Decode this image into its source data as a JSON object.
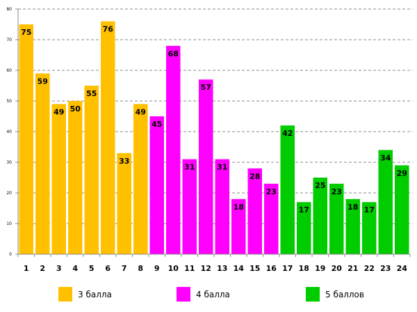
{
  "chart_data": {
    "type": "bar",
    "categories": [
      "1",
      "2",
      "3",
      "4",
      "5",
      "6",
      "7",
      "8",
      "9",
      "10",
      "11",
      "12",
      "13",
      "14",
      "15",
      "16",
      "17",
      "18",
      "19",
      "20",
      "21",
      "22",
      "23",
      "24"
    ],
    "values": [
      75,
      59,
      49,
      50,
      55,
      76,
      33,
      49,
      45,
      68,
      31,
      57,
      31,
      18,
      28,
      23,
      42,
      17,
      25,
      23,
      18,
      17,
      34,
      29
    ],
    "groups": [
      0,
      0,
      0,
      0,
      0,
      0,
      0,
      0,
      1,
      1,
      1,
      1,
      1,
      1,
      1,
      1,
      2,
      2,
      2,
      2,
      2,
      2,
      2,
      2
    ],
    "legend": [
      {
        "name": "3 балла",
        "color": "#FFC000"
      },
      {
        "name": "4 балла",
        "color": "#FF00FF"
      },
      {
        "name": "5 баллов",
        "color": "#00CC00"
      }
    ],
    "legend_position": "bottom",
    "ylim": [
      0,
      80
    ],
    "yticks": [
      0,
      10,
      20,
      30,
      40,
      50,
      60,
      70,
      80
    ],
    "grid": "horizontal dashed",
    "data_labels": true,
    "title": "",
    "xlabel": "",
    "ylabel": ""
  }
}
